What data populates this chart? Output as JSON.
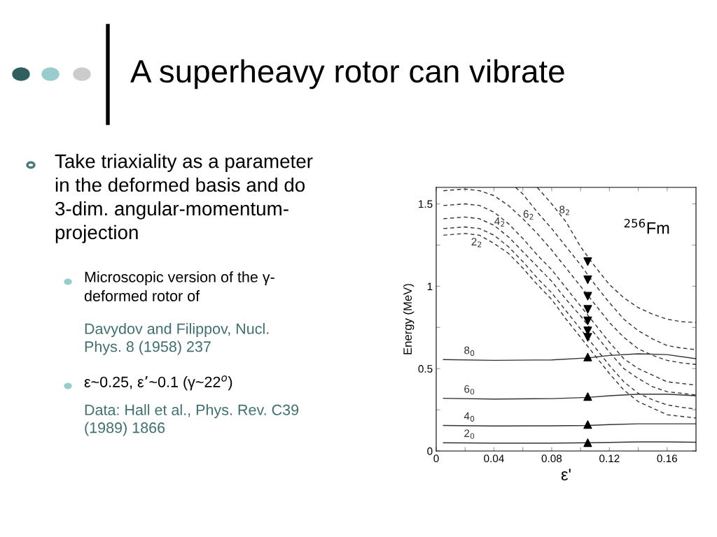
{
  "chart_data": {
    "type": "line",
    "title": "A superheavy rotor can vibrate",
    "xlabel": "ε'",
    "ylabel": "Energy (MeV)",
    "xlim": [
      0,
      0.18
    ],
    "ylim": [
      0,
      1.6
    ],
    "xticks": [
      0,
      {
        "value": 0.02,
        "label": null
      },
      0.04,
      {
        "value": 0.06,
        "label": null
      },
      0.08,
      {
        "value": 0.1,
        "label": null
      },
      0.12,
      {
        "value": 0.14,
        "label": null
      },
      0.16
    ],
    "yticks": [
      0,
      {
        "value": 0.25,
        "label": null
      },
      0.5,
      {
        "value": 0.75,
        "label": null
      },
      1,
      {
        "value": 1.25,
        "label": null
      },
      1.5
    ],
    "grid": false,
    "legend": false,
    "series": [
      {
        "name": "2$_{2}$",
        "line_style": "dashed",
        "color": "#333333",
        "x": [
          0.005,
          0.02,
          0.03,
          0.04,
          0.05,
          0.06,
          0.07,
          0.08,
          0.09,
          0.1,
          0.11,
          0.12,
          0.13,
          0.14,
          0.15,
          0.16,
          0.17,
          0.18
        ],
        "values": [
          1.31,
          1.32,
          1.31,
          1.26,
          1.2,
          1.11,
          1.01,
          0.92,
          0.8,
          0.69,
          0.58,
          0.47,
          0.37,
          0.3,
          0.26,
          0.22,
          0.21,
          0.2
        ]
      },
      {
        "line_style": "dashed",
        "color": "#333333",
        "x": [
          0.005,
          0.02,
          0.03,
          0.04,
          0.05,
          0.06,
          0.07,
          0.08,
          0.09,
          0.1,
          0.11,
          0.12,
          0.13,
          0.14,
          0.15,
          0.16,
          0.17,
          0.18
        ],
        "values": [
          1.35,
          1.36,
          1.35,
          1.31,
          1.24,
          1.15,
          1.05,
          0.96,
          0.85,
          0.74,
          0.63,
          0.52,
          0.42,
          0.35,
          0.31,
          0.28,
          0.265,
          0.255
        ]
      },
      {
        "name": "4$_{2}$",
        "line_style": "dashed",
        "color": "#333333",
        "x": [
          0.005,
          0.02,
          0.03,
          0.04,
          0.05,
          0.06,
          0.07,
          0.08,
          0.09,
          0.1,
          0.11,
          0.12,
          0.13,
          0.14,
          0.15,
          0.16,
          0.17,
          0.18
        ],
        "values": [
          1.41,
          1.42,
          1.41,
          1.37,
          1.3,
          1.21,
          1.12,
          1.03,
          0.92,
          0.82,
          0.71,
          0.6,
          0.5,
          0.44,
          0.39,
          0.36,
          0.35,
          0.34
        ]
      },
      {
        "line_style": "dashed",
        "color": "#333333",
        "x": [
          0.005,
          0.02,
          0.03,
          0.04,
          0.05,
          0.06,
          0.07,
          0.08,
          0.09,
          0.1,
          0.11,
          0.12,
          0.13,
          0.14,
          0.15,
          0.16,
          0.17,
          0.18
        ],
        "values": [
          1.49,
          1.5,
          1.49,
          1.45,
          1.38,
          1.29,
          1.19,
          1.1,
          0.99,
          0.88,
          0.77,
          0.66,
          0.56,
          0.5,
          0.46,
          0.42,
          0.41,
          0.4
        ]
      },
      {
        "name": "6$_{2}$",
        "line_style": "dashed",
        "color": "#333333",
        "x": [
          0.005,
          0.02,
          0.03,
          0.04,
          0.05,
          0.06,
          0.07,
          0.08,
          0.09,
          0.1,
          0.11,
          0.12,
          0.13,
          0.14,
          0.15,
          0.16,
          0.17,
          0.18
        ],
        "values": [
          1.58,
          1.59,
          1.58,
          1.55,
          1.49,
          1.41,
          1.32,
          1.22,
          1.11,
          1.0,
          0.89,
          0.78,
          0.69,
          0.62,
          0.58,
          0.55,
          0.535,
          0.525
        ]
      },
      {
        "line_style": "dashed",
        "color": "#333333",
        "x": [
          0.055,
          0.06,
          0.07,
          0.08,
          0.09,
          0.1,
          0.11,
          0.12,
          0.13,
          0.14,
          0.15,
          0.16,
          0.17,
          0.18
        ],
        "values": [
          1.6,
          1.56,
          1.45,
          1.35,
          1.24,
          1.13,
          1.01,
          0.9,
          0.8,
          0.73,
          0.68,
          0.64,
          0.625,
          0.615
        ]
      },
      {
        "name": "8$_{2}$",
        "line_style": "dashed",
        "color": "#333333",
        "x": [
          0.07,
          0.08,
          0.09,
          0.1,
          0.11,
          0.12,
          0.13,
          0.14,
          0.15,
          0.16,
          0.17,
          0.18
        ],
        "values": [
          1.6,
          1.5,
          1.39,
          1.24,
          1.12,
          1.01,
          0.93,
          0.87,
          0.83,
          0.8,
          0.785,
          0.78
        ]
      },
      {
        "name": "2$_{0}$",
        "line_style": "solid",
        "color": "#333333",
        "x": [
          0.005,
          0.04,
          0.08,
          0.105,
          0.12,
          0.14,
          0.16,
          0.18
        ],
        "values": [
          0.05,
          0.048,
          0.048,
          0.05,
          0.052,
          0.055,
          0.055,
          0.053
        ]
      },
      {
        "name": "4$_{0}$",
        "line_style": "solid",
        "color": "#333333",
        "x": [
          0.005,
          0.04,
          0.08,
          0.105,
          0.12,
          0.14,
          0.16,
          0.18
        ],
        "values": [
          0.155,
          0.152,
          0.153,
          0.155,
          0.16,
          0.165,
          0.165,
          0.165
        ]
      },
      {
        "name": "6$_{0}$",
        "line_style": "solid",
        "color": "#333333",
        "x": [
          0.005,
          0.04,
          0.08,
          0.105,
          0.12,
          0.14,
          0.16,
          0.18
        ],
        "values": [
          0.32,
          0.315,
          0.318,
          0.325,
          0.335,
          0.345,
          0.345,
          0.335
        ]
      },
      {
        "name": "8$_{0}$",
        "line_style": "solid",
        "color": "#333333",
        "x": [
          0.005,
          0.04,
          0.08,
          0.105,
          0.12,
          0.14,
          0.16,
          0.18
        ],
        "values": [
          0.555,
          0.55,
          0.553,
          0.565,
          0.58,
          0.59,
          0.585,
          0.56
        ]
      },
      {
        "type": "scatter",
        "marker": "triangle",
        "color": "#000000",
        "x": [
          0.105,
          0.105,
          0.105,
          0.105
        ],
        "values": [
          0.05,
          0.16,
          0.33,
          0.57
        ]
      },
      {
        "type": "scatter",
        "marker": "triangle_down",
        "color": "#000000",
        "x": [
          0.105,
          0.105,
          0.105,
          0.105,
          0.105,
          0.105,
          0.105
        ],
        "values": [
          0.69,
          0.73,
          0.79,
          0.86,
          0.94,
          1.04,
          1.15
        ]
      }
    ],
    "annotations": [
      "Take triaxiality as a parameter\nin the deformed basis and do\n3-dim. angular-momentum-\nprojection",
      "Microscopic version of the γ-\ndeformed rotor of",
      "Davydov and Filippov, Nucl.\nPhys. 8 (1958) 237",
      "ε~0.25, ε’~0.1 (γ~22$^{o}$)",
      "Data: Hall et al., Phys. Rev. C39\n(1989) 1866",
      "$^{256}$Fm"
    ]
  }
}
